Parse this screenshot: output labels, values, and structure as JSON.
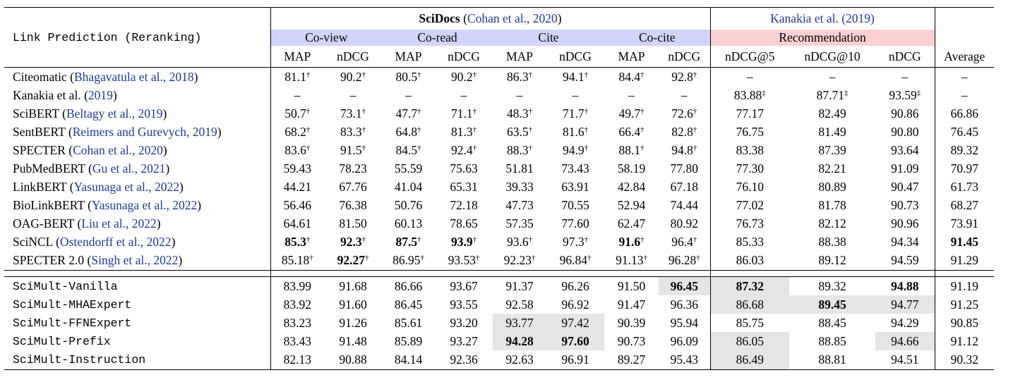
{
  "title_cell": "Link Prediction (Reranking)",
  "scidocs": {
    "name": "SciDocs",
    "cite": "Cohan et al., 2020"
  },
  "kanakia_header": "Kanakia et al. (2019)",
  "groups": [
    "Co-view",
    "Co-read",
    "Cite",
    "Co-cite",
    "Recommendation"
  ],
  "col_headers": [
    "MAP",
    "nDCG",
    "MAP",
    "nDCG",
    "MAP",
    "nDCG",
    "MAP",
    "nDCG",
    "nDCG@5",
    "nDCG@10",
    "nDCG",
    "Average"
  ],
  "baselines": [
    {
      "name": "Citeomatic",
      "cite": "Bhagavatula et al., 2018",
      "vals": [
        "81.1",
        "90.2",
        "80.5",
        "90.2",
        "86.3",
        "94.1",
        "84.4",
        "92.8",
        "–",
        "–",
        "–",
        "–"
      ],
      "marks": [
        "†",
        "†",
        "†",
        "†",
        "†",
        "†",
        "†",
        "†",
        "",
        "",
        "",
        ""
      ],
      "bold": []
    },
    {
      "name": "Kanakia et al.",
      "cite": "2019",
      "vals": [
        "–",
        "–",
        "–",
        "–",
        "–",
        "–",
        "–",
        "–",
        "83.88",
        "87.71",
        "93.59",
        "–"
      ],
      "marks": [
        "",
        "",
        "",
        "",
        "",
        "",
        "",
        "",
        "‡",
        "‡",
        "‡",
        ""
      ],
      "bold": []
    },
    {
      "name": "SciBERT",
      "cite": "Beltagy et al., 2019",
      "vals": [
        "50.7",
        "73.1",
        "47.7",
        "71.1",
        "48.3",
        "71.7",
        "49.7",
        "72.6",
        "77.17",
        "82.49",
        "90.86",
        "66.86"
      ],
      "marks": [
        "†",
        "†",
        "†",
        "†",
        "†",
        "†",
        "†",
        "†",
        "",
        "",
        "",
        ""
      ],
      "bold": []
    },
    {
      "name": "SentBERT",
      "cite": "Reimers and Gurevych, 2019",
      "vals": [
        "68.2",
        "83.3",
        "64.8",
        "81.3",
        "63.5",
        "81.6",
        "66.4",
        "82.8",
        "76.75",
        "81.49",
        "90.80",
        "76.45"
      ],
      "marks": [
        "†",
        "†",
        "†",
        "†",
        "†",
        "†",
        "†",
        "†",
        "",
        "",
        "",
        ""
      ],
      "bold": []
    },
    {
      "name": "SPECTER",
      "cite": "Cohan et al., 2020",
      "vals": [
        "83.6",
        "91.5",
        "84.5",
        "92.4",
        "88.3",
        "94.9",
        "88.1",
        "94.8",
        "83.38",
        "87.39",
        "93.64",
        "89.32"
      ],
      "marks": [
        "†",
        "†",
        "†",
        "†",
        "†",
        "†",
        "†",
        "†",
        "",
        "",
        "",
        ""
      ],
      "bold": []
    },
    {
      "name": "PubMedBERT",
      "cite": "Gu et al., 2021",
      "vals": [
        "59.43",
        "78.23",
        "55.59",
        "75.63",
        "51.81",
        "73.43",
        "58.19",
        "77.80",
        "77.30",
        "82.21",
        "91.09",
        "70.97"
      ],
      "marks": [
        "",
        "",
        "",
        "",
        "",
        "",
        "",
        "",
        "",
        "",
        "",
        ""
      ],
      "bold": []
    },
    {
      "name": "LinkBERT",
      "cite": "Yasunaga et al., 2022",
      "vals": [
        "44.21",
        "67.76",
        "41.04",
        "65.31",
        "39.33",
        "63.91",
        "42.84",
        "67.18",
        "76.10",
        "80.89",
        "90.47",
        "61.73"
      ],
      "marks": [
        "",
        "",
        "",
        "",
        "",
        "",
        "",
        "",
        "",
        "",
        "",
        ""
      ],
      "bold": []
    },
    {
      "name": "BioLinkBERT",
      "cite": "Yasunaga et al., 2022",
      "vals": [
        "56.46",
        "76.38",
        "50.76",
        "72.18",
        "47.73",
        "70.55",
        "52.94",
        "74.44",
        "77.02",
        "81.78",
        "90.73",
        "68.27"
      ],
      "marks": [
        "",
        "",
        "",
        "",
        "",
        "",
        "",
        "",
        "",
        "",
        "",
        ""
      ],
      "bold": []
    },
    {
      "name": "OAG-BERT",
      "cite": "Liu et al., 2022",
      "vals": [
        "64.61",
        "81.50",
        "60.13",
        "78.65",
        "57.35",
        "77.60",
        "62.47",
        "80.92",
        "76.73",
        "82.12",
        "90.96",
        "73.91"
      ],
      "marks": [
        "",
        "",
        "",
        "",
        "",
        "",
        "",
        "",
        "",
        "",
        "",
        ""
      ],
      "bold": []
    },
    {
      "name": "SciNCL",
      "cite": "Ostendorff et al., 2022",
      "vals": [
        "85.3",
        "92.3",
        "87.5",
        "93.9",
        "93.6",
        "97.3",
        "91.6",
        "96.4",
        "85.33",
        "88.38",
        "94.34",
        "91.45"
      ],
      "marks": [
        "†",
        "†",
        "†",
        "†",
        "†",
        "†",
        "†",
        "†",
        "",
        "",
        "",
        ""
      ],
      "bold": [
        0,
        1,
        2,
        3,
        6,
        11
      ]
    },
    {
      "name": "SPECTER 2.0",
      "cite": "Singh et al., 2022",
      "vals": [
        "85.18",
        "92.27",
        "86.95",
        "93.53",
        "92.23",
        "96.84",
        "91.13",
        "96.28",
        "86.03",
        "89.12",
        "94.59",
        "91.29"
      ],
      "marks": [
        "†",
        "†",
        "†",
        "†",
        "†",
        "†",
        "†",
        "†",
        "",
        "",
        "",
        ""
      ],
      "bold": [
        1
      ]
    }
  ],
  "ours": [
    {
      "name": "SciMult-Vanilla",
      "vals": [
        "83.99",
        "91.68",
        "86.66",
        "93.67",
        "91.37",
        "96.26",
        "91.50",
        "96.45",
        "87.32",
        "89.32",
        "94.88",
        "91.19"
      ],
      "bold": [
        7,
        8,
        10
      ],
      "shade": [
        7,
        8
      ]
    },
    {
      "name": "SciMult-MHAExpert",
      "vals": [
        "83.92",
        "91.60",
        "86.45",
        "93.55",
        "92.58",
        "96.92",
        "91.47",
        "96.36",
        "86.68",
        "89.45",
        "94.77",
        "91.25"
      ],
      "bold": [
        9
      ],
      "shade": [
        8,
        9,
        10
      ]
    },
    {
      "name": "SciMult-FFNExpert",
      "vals": [
        "83.23",
        "91.26",
        "85.61",
        "93.20",
        "93.77",
        "97.42",
        "90.39",
        "95.94",
        "85.75",
        "88.45",
        "94.29",
        "90.85"
      ],
      "bold": [],
      "shade": [
        4,
        5
      ]
    },
    {
      "name": "SciMult-Prefix",
      "vals": [
        "83.43",
        "91.48",
        "85.89",
        "93.27",
        "94.28",
        "97.60",
        "90.73",
        "96.09",
        "86.05",
        "88.85",
        "94.66",
        "91.12"
      ],
      "bold": [
        4,
        5
      ],
      "shade": [
        4,
        5,
        8,
        10
      ]
    },
    {
      "name": "SciMult-Instruction",
      "vals": [
        "82.13",
        "90.88",
        "84.14",
        "92.36",
        "92.63",
        "96.91",
        "89.27",
        "95.43",
        "86.49",
        "88.81",
        "94.51",
        "90.32"
      ],
      "bold": [],
      "shade": [
        8
      ]
    }
  ]
}
